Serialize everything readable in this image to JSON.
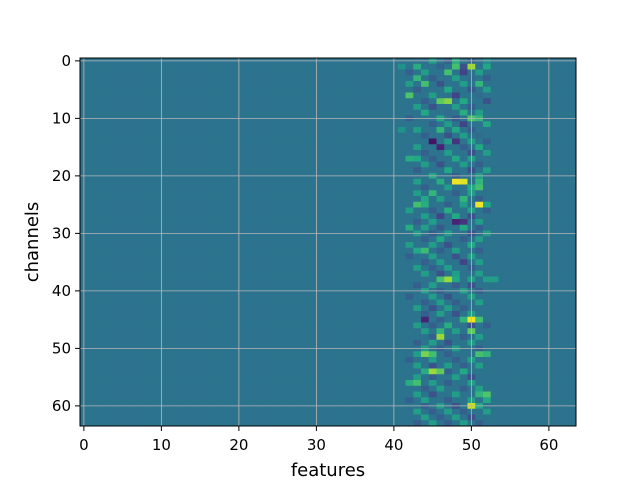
{
  "chart_data": {
    "type": "heatmap",
    "xlabel": "features",
    "ylabel": "channels",
    "x_range": [
      -0.5,
      63.5
    ],
    "y_range": [
      -0.5,
      63.5
    ],
    "y_inverted": true,
    "grid": true,
    "colormap": "viridis",
    "x_ticks": [
      0,
      10,
      20,
      30,
      40,
      50,
      60
    ],
    "y_ticks": [
      0,
      10,
      20,
      30,
      40,
      50,
      60
    ],
    "n_rows": 64,
    "n_cols": 64,
    "background_value": 0.38,
    "cells": [
      {
        "row": 0,
        "values": {
          "45": 0.55,
          "47": 0.3,
          "48": 0.62,
          "50": 0.32,
          "52": 0.48
        }
      },
      {
        "row": 1,
        "values": {
          "41": 0.5,
          "43": 0.62,
          "46": 0.32,
          "48": 0.7,
          "49": 0.25,
          "50": 0.85,
          "52": 0.6
        }
      },
      {
        "row": 2,
        "values": {
          "42": 0.3,
          "44": 0.55,
          "47": 0.7,
          "49": 0.2,
          "51": 0.55
        }
      },
      {
        "row": 3,
        "values": {
          "43": 0.65,
          "45": 0.3,
          "48": 0.55,
          "50": 0.35,
          "52": 0.3
        }
      },
      {
        "row": 4,
        "values": {
          "42": 0.55,
          "44": 0.7,
          "46": 0.25,
          "49": 0.55,
          "51": 0.65
        }
      },
      {
        "row": 5,
        "values": {
          "43": 0.3,
          "47": 0.6,
          "50": 0.28,
          "52": 0.55
        }
      },
      {
        "row": 6,
        "values": {
          "42": 0.72,
          "45": 0.55,
          "48": 0.2,
          "51": 0.35
        }
      },
      {
        "row": 7,
        "values": {
          "44": 0.3,
          "46": 0.75,
          "47": 0.82,
          "49": 0.6,
          "52": 0.25
        }
      },
      {
        "row": 8,
        "values": {
          "43": 0.55,
          "45": 0.25,
          "48": 0.55,
          "50": 0.3
        }
      },
      {
        "row": 9,
        "values": {
          "44": 0.6,
          "47": 0.35,
          "49": 0.62,
          "51": 0.55
        }
      },
      {
        "row": 10,
        "values": {
          "42": 0.3,
          "46": 0.6,
          "48": 0.28,
          "50": 0.72,
          "51": 0.65
        }
      },
      {
        "row": 11,
        "values": {
          "45": 0.3,
          "47": 0.55,
          "49": 0.2,
          "52": 0.6
        }
      },
      {
        "row": 12,
        "values": {
          "41": 0.5,
          "43": 0.55,
          "46": 0.65,
          "48": 0.6,
          "50": 0.3
        }
      },
      {
        "row": 13,
        "values": {
          "44": 0.3,
          "47": 0.25,
          "49": 0.55,
          "51": 0.35
        }
      },
      {
        "row": 14,
        "values": {
          "45": 0.05,
          "47": 0.55,
          "48": 0.15,
          "50": 0.55,
          "52": 0.3
        }
      },
      {
        "row": 15,
        "values": {
          "43": 0.55,
          "46": 0.1,
          "49": 0.3,
          "51": 0.6
        }
      },
      {
        "row": 16,
        "values": {
          "44": 0.3,
          "47": 0.55,
          "50": 0.25,
          "52": 0.55
        }
      },
      {
        "row": 17,
        "values": {
          "42": 0.62,
          "43": 0.6,
          "45": 0.3,
          "48": 0.6,
          "50": 0.55
        }
      },
      {
        "row": 18,
        "values": {
          "44": 0.55,
          "46": 0.25,
          "49": 0.55,
          "51": 0.3
        }
      },
      {
        "row": 19,
        "values": {
          "43": 0.3,
          "47": 0.6,
          "50": 0.25,
          "52": 0.55
        }
      },
      {
        "row": 20,
        "values": {
          "45": 0.6,
          "48": 0.3,
          "51": 0.55
        }
      },
      {
        "row": 21,
        "values": {
          "43": 0.55,
          "46": 0.62,
          "48": 0.98,
          "49": 0.95,
          "51": 0.65
        }
      },
      {
        "row": 22,
        "values": {
          "44": 0.3,
          "47": 0.55,
          "50": 0.6,
          "51": 0.7
        }
      },
      {
        "row": 23,
        "values": {
          "43": 0.55,
          "45": 0.65,
          "48": 0.3,
          "50": 0.55
        }
      },
      {
        "row": 24,
        "values": {
          "44": 0.6,
          "46": 0.55,
          "49": 0.65,
          "51": 0.3
        }
      },
      {
        "row": 25,
        "values": {
          "43": 0.7,
          "44": 0.62,
          "47": 0.3,
          "49": 0.55,
          "51": 0.98,
          "52": 0.6
        }
      },
      {
        "row": 26,
        "values": {
          "42": 0.55,
          "45": 0.3,
          "47": 0.62,
          "50": 0.55,
          "52": 0.3
        }
      },
      {
        "row": 27,
        "values": {
          "44": 0.55,
          "46": 0.2,
          "48": 0.6,
          "50": 0.25
        }
      },
      {
        "row": 28,
        "values": {
          "43": 0.3,
          "45": 0.55,
          "48": 0.1,
          "49": 0.15,
          "51": 0.55
        }
      },
      {
        "row": 29,
        "values": {
          "42": 0.62,
          "44": 0.55,
          "46": 0.28,
          "49": 0.6,
          "51": 0.3
        }
      },
      {
        "row": 30,
        "values": {
          "43": 0.55,
          "45": 0.3,
          "47": 0.55,
          "50": 0.25,
          "52": 0.55
        }
      },
      {
        "row": 31,
        "values": {
          "44": 0.3,
          "46": 0.6,
          "49": 0.3,
          "51": 0.55
        }
      },
      {
        "row": 32,
        "values": {
          "42": 0.55,
          "45": 0.55,
          "47": 0.25,
          "50": 0.6
        }
      },
      {
        "row": 33,
        "values": {
          "43": 0.6,
          "44": 0.68,
          "46": 0.3,
          "48": 0.55,
          "51": 0.3
        }
      },
      {
        "row": 34,
        "values": {
          "42": 0.3,
          "45": 0.55,
          "48": 0.25,
          "50": 0.55
        }
      },
      {
        "row": 35,
        "values": {
          "44": 0.3,
          "46": 0.55,
          "49": 0.2,
          "51": 0.55
        }
      },
      {
        "row": 36,
        "values": {
          "43": 0.55,
          "45": 0.3,
          "47": 0.55,
          "50": 0.3
        }
      },
      {
        "row": 37,
        "values": {
          "44": 0.55,
          "46": 0.25,
          "48": 0.55,
          "51": 0.55
        }
      },
      {
        "row": 38,
        "values": {
          "46": 0.7,
          "47": 0.85,
          "48": 0.6,
          "50": 0.55,
          "52": 0.55,
          "53": 0.55
        }
      },
      {
        "row": 39,
        "values": {
          "43": 0.3,
          "45": 0.55,
          "48": 0.3,
          "50": 0.25
        }
      },
      {
        "row": 40,
        "values": {
          "44": 0.55,
          "46": 0.3,
          "49": 0.55,
          "51": 0.3
        }
      },
      {
        "row": 41,
        "values": {
          "42": 0.3,
          "45": 0.55,
          "47": 0.25,
          "50": 0.55
        }
      },
      {
        "row": 42,
        "values": {
          "44": 0.3,
          "46": 0.55,
          "48": 0.3,
          "51": 0.55
        }
      },
      {
        "row": 43,
        "values": {
          "43": 0.55,
          "45": 0.25,
          "47": 0.55,
          "49": 0.3
        }
      },
      {
        "row": 44,
        "values": {
          "44": 0.3,
          "46": 0.55,
          "48": 0.25,
          "50": 0.55
        }
      },
      {
        "row": 45,
        "values": {
          "44": 0.1,
          "46": 0.3,
          "49": 0.65,
          "50": 0.98,
          "51": 0.7
        }
      },
      {
        "row": 46,
        "values": {
          "43": 0.55,
          "45": 0.3,
          "47": 0.62,
          "50": 0.25,
          "52": 0.3
        }
      },
      {
        "row": 47,
        "values": {
          "44": 0.55,
          "46": 0.65,
          "48": 0.55,
          "50": 0.75
        }
      },
      {
        "row": 48,
        "values": {
          "45": 0.3,
          "46": 0.85,
          "49": 0.3,
          "51": 0.55
        }
      },
      {
        "row": 49,
        "values": {
          "43": 0.3,
          "45": 0.55,
          "47": 0.25,
          "50": 0.55
        }
      },
      {
        "row": 50,
        "values": {
          "44": 0.55,
          "46": 0.3,
          "48": 0.55,
          "51": 0.3
        }
      },
      {
        "row": 51,
        "values": {
          "43": 0.55,
          "44": 0.8,
          "45": 0.7,
          "47": 0.3,
          "51": 0.7,
          "52": 0.65
        }
      },
      {
        "row": 52,
        "values": {
          "42": 0.3,
          "45": 0.55,
          "48": 0.3,
          "50": 0.55
        }
      },
      {
        "row": 53,
        "values": {
          "43": 0.55,
          "45": 0.25,
          "47": 0.55,
          "49": 0.3,
          "51": 0.55
        }
      },
      {
        "row": 54,
        "values": {
          "44": 0.62,
          "45": 0.85,
          "46": 0.75,
          "47": 0.3,
          "49": 0.6
        }
      },
      {
        "row": 55,
        "values": {
          "43": 0.55,
          "45": 0.3,
          "48": 0.55,
          "50": 0.25
        }
      },
      {
        "row": 56,
        "values": {
          "42": 0.62,
          "43": 0.7,
          "45": 0.55,
          "47": 0.3,
          "50": 0.55
        }
      },
      {
        "row": 57,
        "values": {
          "44": 0.3,
          "46": 0.55,
          "49": 0.3,
          "51": 0.55
        }
      },
      {
        "row": 58,
        "values": {
          "43": 0.55,
          "45": 0.25,
          "48": 0.55,
          "51": 0.65,
          "52": 0.72
        }
      },
      {
        "row": 59,
        "values": {
          "42": 0.3,
          "44": 0.55,
          "47": 0.3,
          "50": 0.55,
          "52": 0.6
        }
      },
      {
        "row": 60,
        "values": {
          "44": 0.3,
          "46": 0.55,
          "48": 0.25,
          "50": 0.92,
          "51": 0.6
        }
      },
      {
        "row": 61,
        "values": {
          "43": 0.55,
          "45": 0.3,
          "47": 0.55,
          "49": 0.3,
          "52": 0.55
        }
      },
      {
        "row": 62,
        "values": {
          "44": 0.55,
          "46": 0.3,
          "48": 0.55,
          "50": 0.25
        }
      },
      {
        "row": 63,
        "values": {
          "43": 0.3,
          "45": 0.55,
          "47": 0.3,
          "49": 0.55,
          "51": 0.3
        }
      }
    ]
  }
}
